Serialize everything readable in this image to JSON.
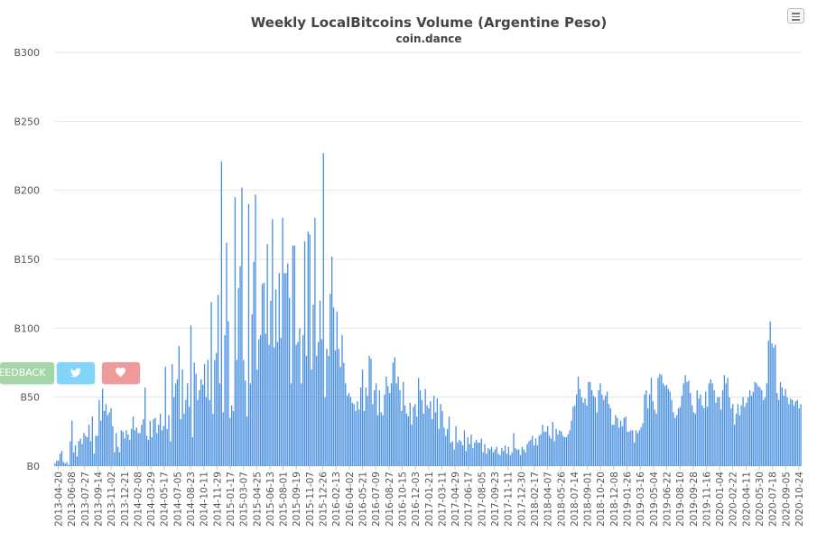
{
  "chart_data": {
    "type": "bar",
    "title": "Weekly LocalBitcoins Volume (Argentine Peso)",
    "subtitle": "coin.dance",
    "yticks": [
      "B0",
      "B50",
      "B100",
      "B150",
      "B200",
      "B250",
      "B300"
    ],
    "ylim": [
      0,
      300
    ],
    "xticks": [
      "2013-04-20",
      "2013-06-08",
      "2013-07-27",
      "2013-09-14",
      "2013-11-02",
      "2013-12-21",
      "2014-02-08",
      "2014-03-29",
      "2014-05-17",
      "2014-07-05",
      "2014-08-23",
      "2014-10-11",
      "2014-11-29",
      "2015-01-17",
      "2015-03-07",
      "2015-04-25",
      "2015-06-13",
      "2015-08-01",
      "2015-09-19",
      "2015-11-07",
      "2015-12-26",
      "2016-02-13",
      "2016-04-02",
      "2016-05-21",
      "2016-07-09",
      "2016-08-27",
      "2016-10-15",
      "2016-12-03",
      "2017-01-21",
      "2017-03-11",
      "2017-04-29",
      "2017-06-17",
      "2017-08-05",
      "2017-09-23",
      "2017-11-11",
      "2017-12-30",
      "2018-02-17",
      "2018-04-07",
      "2018-05-26",
      "2018-07-14",
      "2018-09-01",
      "2018-10-20",
      "2018-12-08",
      "2019-01-26",
      "2019-03-16",
      "2019-05-04",
      "2019-06-22",
      "2019-08-10",
      "2019-09-28",
      "2019-11-16",
      "2020-01-04",
      "2020-02-22",
      "2020-04-11",
      "2020-05-30",
      "2020-07-18",
      "2020-09-05",
      "2020-10-24"
    ],
    "values": [
      2,
      4,
      4,
      9,
      11,
      3,
      2,
      3,
      1,
      18,
      33,
      10,
      15,
      7,
      18,
      20,
      16,
      24,
      22,
      21,
      30,
      18,
      36,
      9,
      22,
      22,
      48,
      33,
      56,
      40,
      45,
      37,
      39,
      42,
      29,
      10,
      24,
      14,
      10,
      26,
      25,
      20,
      26,
      23,
      19,
      27,
      36,
      26,
      28,
      24,
      24,
      30,
      34,
      57,
      22,
      19,
      33,
      21,
      34,
      35,
      24,
      30,
      38,
      26,
      29,
      72,
      27,
      37,
      18,
      74,
      50,
      60,
      63,
      87,
      34,
      70,
      38,
      48,
      60,
      43,
      102,
      21,
      75,
      67,
      48,
      55,
      63,
      59,
      74,
      50,
      77,
      48,
      119,
      38,
      77,
      82,
      124,
      60,
      221,
      39,
      95,
      162,
      105,
      35,
      44,
      40,
      195,
      77,
      129,
      145,
      202,
      77,
      62,
      36,
      190,
      60,
      110,
      148,
      197,
      70,
      92,
      95,
      132,
      133,
      96,
      161,
      88,
      120,
      179,
      86,
      128,
      90,
      140,
      93,
      180,
      140,
      140,
      147,
      122,
      60,
      160,
      160,
      88,
      90,
      100,
      60,
      95,
      163,
      80,
      170,
      168,
      70,
      117,
      180,
      80,
      90,
      120,
      92,
      227,
      50,
      85,
      80,
      125,
      152,
      115,
      84,
      112,
      85,
      72,
      95,
      75,
      60,
      51,
      53,
      50,
      46,
      45,
      40,
      47,
      41,
      57,
      70,
      40,
      57,
      51,
      80,
      78,
      45,
      55,
      60,
      37,
      55,
      39,
      37,
      52,
      65,
      58,
      53,
      60,
      75,
      79,
      60,
      65,
      55,
      40,
      61,
      44,
      38,
      36,
      46,
      30,
      43,
      45,
      36,
      64,
      55,
      48,
      38,
      56,
      44,
      42,
      47,
      34,
      51,
      39,
      49,
      27,
      45,
      40,
      28,
      22,
      27,
      36,
      17,
      18,
      12,
      29,
      17,
      19,
      18,
      15,
      26,
      11,
      21,
      16,
      23,
      13,
      17,
      19,
      17,
      17,
      20,
      10,
      16,
      9,
      13,
      12,
      14,
      10,
      12,
      14,
      9,
      8,
      13,
      11,
      15,
      9,
      14,
      8,
      10,
      24,
      13,
      12,
      12,
      8,
      14,
      12,
      10,
      16,
      18,
      19,
      22,
      15,
      20,
      15,
      22,
      23,
      30,
      25,
      25,
      29,
      22,
      20,
      32,
      18,
      27,
      23,
      26,
      25,
      22,
      21,
      21,
      23,
      26,
      33,
      43,
      44,
      52,
      65,
      56,
      50,
      46,
      49,
      44,
      61,
      61,
      55,
      51,
      50,
      39,
      55,
      60,
      52,
      48,
      51,
      54,
      45,
      42,
      30,
      30,
      37,
      35,
      28,
      33,
      29,
      35,
      36,
      25,
      25,
      26,
      26,
      17,
      26,
      24,
      26,
      28,
      31,
      52,
      55,
      42,
      52,
      64,
      47,
      41,
      38,
      64,
      67,
      66,
      60,
      58,
      59,
      56,
      54,
      48,
      39,
      35,
      37,
      42,
      43,
      51,
      60,
      66,
      61,
      62,
      53,
      44,
      39,
      38,
      55,
      49,
      52,
      44,
      42,
      54,
      43,
      60,
      63,
      60,
      55,
      46,
      50,
      50,
      41,
      55,
      66,
      60,
      64,
      50,
      42,
      45,
      30,
      38,
      45,
      37,
      44,
      50,
      43,
      46,
      50,
      55,
      51,
      54,
      61,
      60,
      58,
      57,
      55,
      48,
      50,
      60,
      91,
      105,
      89,
      86,
      88,
      53,
      48,
      61,
      57,
      51,
      56,
      50,
      45,
      49,
      48,
      44,
      47,
      48,
      42,
      45
    ]
  },
  "buttons": {
    "feedback_label": "FEEDBACK",
    "twitter_icon": "twitter-icon",
    "heart_icon": "heart-icon",
    "menu_icon": "hamburger-menu-icon"
  },
  "colors": {
    "bar": "#4a90e2",
    "feedback": "#a5d6a7",
    "twitter": "#81d4fa",
    "heart": "#ef9a9a"
  }
}
